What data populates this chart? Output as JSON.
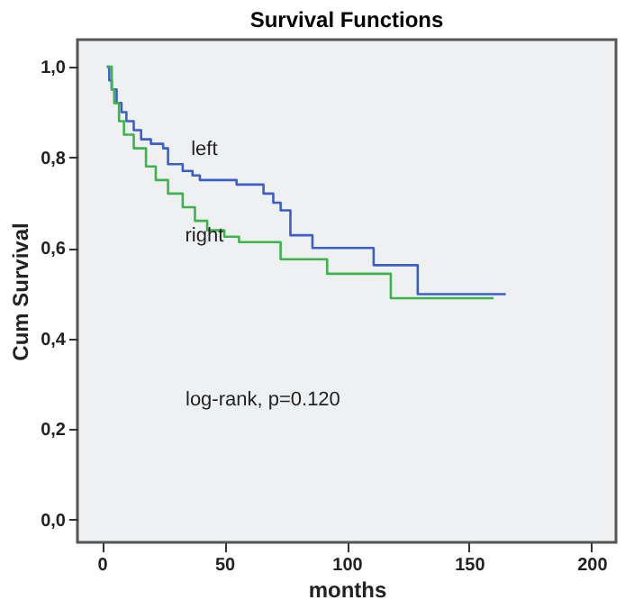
{
  "chart_data": {
    "type": "step",
    "title": "Survival Functions",
    "xlabel": "months",
    "ylabel": "Cum Survival",
    "xlim": [
      -10,
      210
    ],
    "xticks": [
      0,
      50,
      100,
      150,
      200
    ],
    "ylim": [
      -0.05,
      1.06
    ],
    "yticks": [
      {
        "value": 0,
        "label": "0,0"
      },
      {
        "value": 0.2,
        "label": "0,2"
      },
      {
        "value": 0.4,
        "label": "0,4"
      },
      {
        "value": 0.6,
        "label": "0,6"
      },
      {
        "value": 0.8,
        "label": "0,8"
      },
      {
        "value": 1.0,
        "label": "1,0"
      }
    ],
    "grid": false,
    "annotations": [
      "log-rank, p=0.120"
    ],
    "series": [
      {
        "name": "left",
        "color": "#3a5fcd",
        "x": [
          2,
          3,
          4,
          6,
          8,
          10,
          13,
          16,
          20,
          25,
          27,
          33,
          37,
          40,
          55,
          66,
          70,
          73,
          77,
          86,
          111,
          129,
          165
        ],
        "values": [
          1.0,
          0.97,
          0.95,
          0.92,
          0.9,
          0.88,
          0.86,
          0.84,
          0.83,
          0.82,
          0.785,
          0.77,
          0.76,
          0.75,
          0.74,
          0.72,
          0.7,
          0.683,
          0.628,
          0.6,
          0.562,
          0.498,
          0.498
        ]
      },
      {
        "name": "right",
        "color": "#3cb44b",
        "x": [
          2,
          4,
          5,
          7,
          9,
          13,
          18,
          22,
          27,
          33,
          38,
          43,
          50,
          56,
          73,
          92,
          118,
          160
        ],
        "values": [
          1.0,
          0.95,
          0.92,
          0.88,
          0.85,
          0.82,
          0.78,
          0.75,
          0.72,
          0.69,
          0.66,
          0.639,
          0.625,
          0.613,
          0.575,
          0.543,
          0.489,
          0.489
        ]
      }
    ]
  }
}
